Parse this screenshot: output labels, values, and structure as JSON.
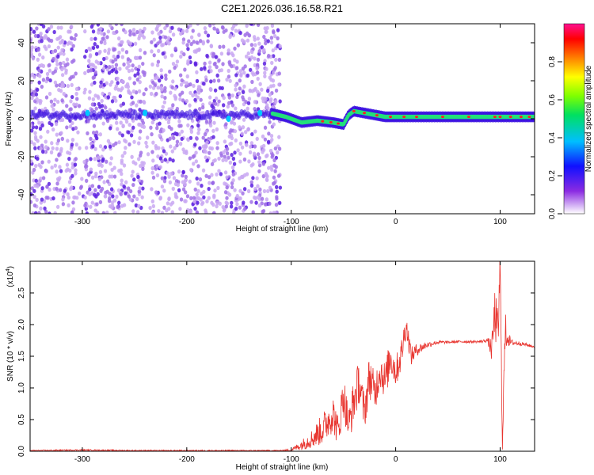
{
  "figure": {
    "title": "C2E1.2026.036.16.58.R21"
  },
  "colors": {
    "snr_line": "#e8352f",
    "spectrogram_low": "#a070e6",
    "spectrogram_core": "#3a10e0",
    "spectrogram_ridge": "#22e07a",
    "spectrogram_peak": "#ff2020",
    "axes": "#000000"
  },
  "chart_data": [
    {
      "type": "heatmap",
      "xlabel": "Height of straight line (km)",
      "ylabel": "Frequency (Hz)",
      "xlim": [
        -350,
        133
      ],
      "ylim": [
        -50,
        50
      ],
      "xticks": [
        -300,
        -200,
        -100,
        0,
        100
      ],
      "yticks": [
        -40,
        -20,
        0,
        20,
        40
      ],
      "xtick_labels": [
        "-300",
        "-200",
        "-100",
        "0",
        "100"
      ],
      "ytick_labels": [
        "-40",
        "-20",
        "0",
        "20",
        "40"
      ],
      "grid": false,
      "noise_region_x": [
        -350,
        -110
      ],
      "signal_ridge": {
        "x": [
          -120,
          -105,
          -90,
          -75,
          -60,
          -50,
          -45,
          -40,
          -30,
          -20,
          -10,
          0,
          20,
          40,
          60,
          80,
          100,
          120,
          133
        ],
        "y": [
          3,
          1,
          -2,
          -1,
          -2,
          -3,
          2,
          4,
          3,
          2,
          1,
          1,
          1,
          1,
          1,
          1,
          1,
          1,
          1
        ]
      },
      "colorbar": {
        "label": "Normalized spectral amplitude",
        "range": [
          0.0,
          1.0
        ],
        "ticks": [
          "0.0",
          "0.2",
          "0.4",
          "0.6",
          "0.8"
        ],
        "colormap": "rainbow"
      }
    },
    {
      "type": "line",
      "xlabel": "Height of straight line (km)",
      "ylabel": "SNR (10 * v/v)",
      "y_multiplier": "(x10",
      "y_multiplier_exp": "4",
      "y_multiplier_close": ")",
      "xlim": [
        -350,
        133
      ],
      "ylim": [
        0,
        3
      ],
      "xticks": [
        -300,
        -200,
        -100,
        0,
        100
      ],
      "yticks": [
        0.0,
        0.5,
        1.0,
        1.5,
        2.0,
        2.5
      ],
      "xtick_labels": [
        "-300",
        "-200",
        "-100",
        "0",
        "100"
      ],
      "ytick_labels": [
        "0.0",
        "0.5",
        "1.0",
        "1.5",
        "2.0",
        "2.5"
      ],
      "grid": false,
      "series": [
        {
          "x": [
            -350,
            -300,
            -250,
            -200,
            -150,
            -110,
            -100,
            -90,
            -80,
            -70,
            -60,
            -55,
            -50,
            -45,
            -40,
            -35,
            -30,
            -25,
            -20,
            -15,
            -10,
            -5,
            0,
            5,
            10,
            15,
            20,
            30,
            40,
            50,
            60,
            70,
            80,
            88,
            92,
            95,
            98,
            100,
            102,
            105,
            110,
            120,
            133
          ],
          "y": [
            0.01,
            0.02,
            0.01,
            0.01,
            0.01,
            0.01,
            0.02,
            0.1,
            0.2,
            0.35,
            0.6,
            0.3,
            0.9,
            0.4,
            0.8,
            1.1,
            0.6,
            1.2,
            0.9,
            1.3,
            1.1,
            1.5,
            1.25,
            1.5,
            2.0,
            1.5,
            1.6,
            1.68,
            1.72,
            1.72,
            1.73,
            1.73,
            1.73,
            1.75,
            1.6,
            2.2,
            1.8,
            3.0,
            0.2,
            1.9,
            1.72,
            1.7,
            1.65
          ],
          "noise_amplitude": [
            0.01,
            0.01,
            0.01,
            0.01,
            0.01,
            0.01,
            0.02,
            0.08,
            0.15,
            0.25,
            0.3,
            0.25,
            0.35,
            0.3,
            0.35,
            0.35,
            0.3,
            0.35,
            0.3,
            0.3,
            0.3,
            0.3,
            0.25,
            0.25,
            0.2,
            0.15,
            0.1,
            0.05,
            0.03,
            0.02,
            0.02,
            0.02,
            0.02,
            0.03,
            0.2,
            0.4,
            0.4,
            0.3,
            0.3,
            0.3,
            0.05,
            0.03,
            0.02
          ]
        }
      ]
    }
  ]
}
